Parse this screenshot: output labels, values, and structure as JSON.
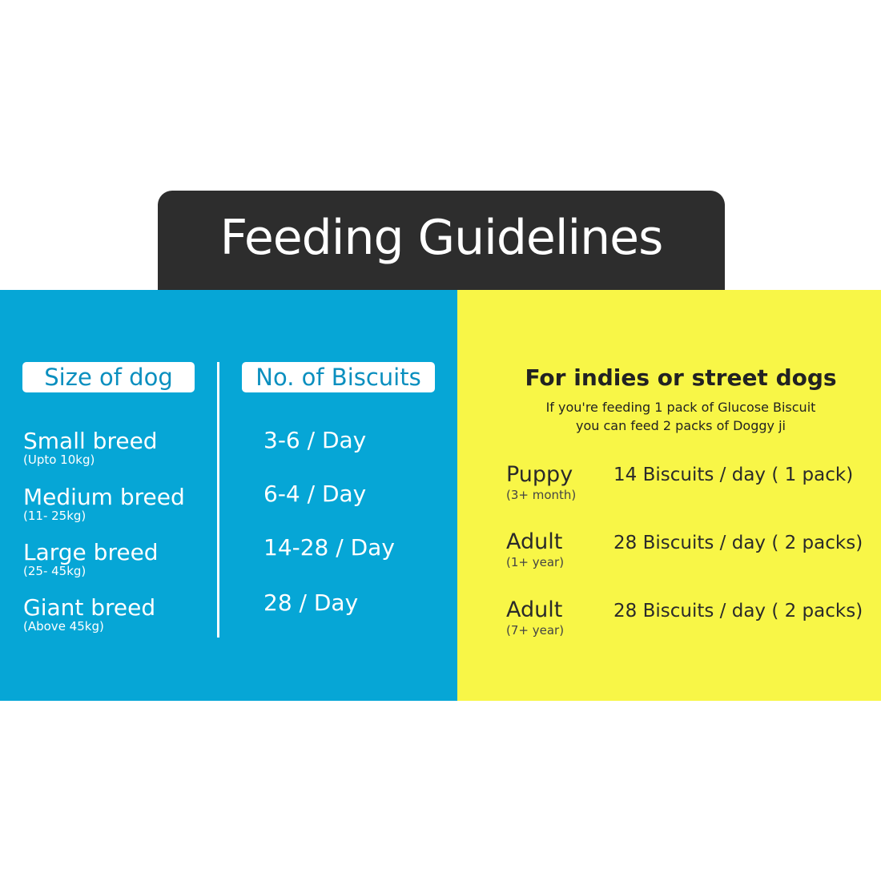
{
  "title": "Feeding Guidelines",
  "colors": {
    "blue": "#06a6d6",
    "yellow": "#f8f647",
    "title_bg": "#2d2d2d"
  },
  "left_panel": {
    "header_size": "Size of dog",
    "header_count": "No. of Biscuits",
    "rows": [
      {
        "breed": "Small breed",
        "weight": "(Upto 10kg)",
        "count": "3-6 / Day"
      },
      {
        "breed": "Medium breed",
        "weight": "(11- 25kg)",
        "count": "6-4 / Day"
      },
      {
        "breed": "Large breed",
        "weight": "(25- 45kg)",
        "count": "14-28 / Day"
      },
      {
        "breed": "Giant breed",
        "weight": "(Above 45kg)",
        "count": "28 / Day"
      }
    ]
  },
  "right_panel": {
    "title": "For indies or street dogs",
    "subtitle_line1": "If you're feeding 1 pack of Glucose Biscuit",
    "subtitle_line2": "you can feed 2 packs of Doggy ji",
    "rows": [
      {
        "age": "Puppy",
        "age_note": "(3+ month)",
        "amount": "14 Biscuits / day ( 1 pack)"
      },
      {
        "age": "Adult",
        "age_note": "(1+ year)",
        "amount": "28 Biscuits / day ( 2 packs)"
      },
      {
        "age": "Adult",
        "age_note": "(7+ year)",
        "amount": "28 Biscuits / day ( 2 packs)"
      }
    ]
  }
}
